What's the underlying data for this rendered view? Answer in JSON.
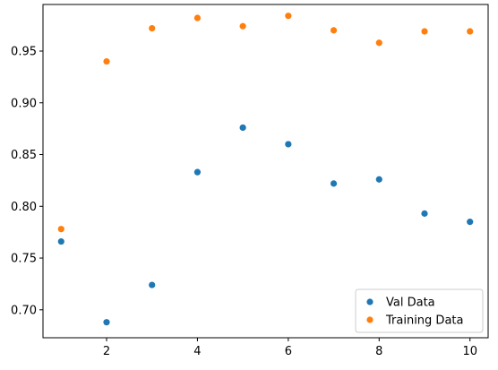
{
  "chart_data": {
    "type": "scatter",
    "title": "",
    "xlabel": "",
    "ylabel": "",
    "xlim": [
      0.6,
      10.4
    ],
    "ylim": [
      0.673,
      0.995
    ],
    "xticks": [
      2,
      4,
      6,
      8,
      10
    ],
    "yticks": [
      0.7,
      0.75,
      0.8,
      0.85,
      0.9,
      0.95
    ],
    "xtick_labels": [
      "2",
      "4",
      "6",
      "8",
      "10"
    ],
    "ytick_labels": [
      "0.70",
      "0.75",
      "0.80",
      "0.85",
      "0.90",
      "0.95"
    ],
    "grid": false,
    "legend_position": "lower-right",
    "series": [
      {
        "name": "Val Data",
        "color": "#1f77b4",
        "x": [
          1,
          2,
          3,
          4,
          5,
          6,
          7,
          8,
          9,
          10
        ],
        "y": [
          0.766,
          0.688,
          0.724,
          0.833,
          0.876,
          0.86,
          0.822,
          0.826,
          0.793,
          0.785
        ]
      },
      {
        "name": "Training Data",
        "color": "#ff7f0e",
        "x": [
          1,
          2,
          3,
          4,
          5,
          6,
          7,
          8,
          9,
          10
        ],
        "y": [
          0.778,
          0.94,
          0.972,
          0.982,
          0.974,
          0.984,
          0.97,
          0.958,
          0.969,
          0.969
        ]
      }
    ]
  }
}
